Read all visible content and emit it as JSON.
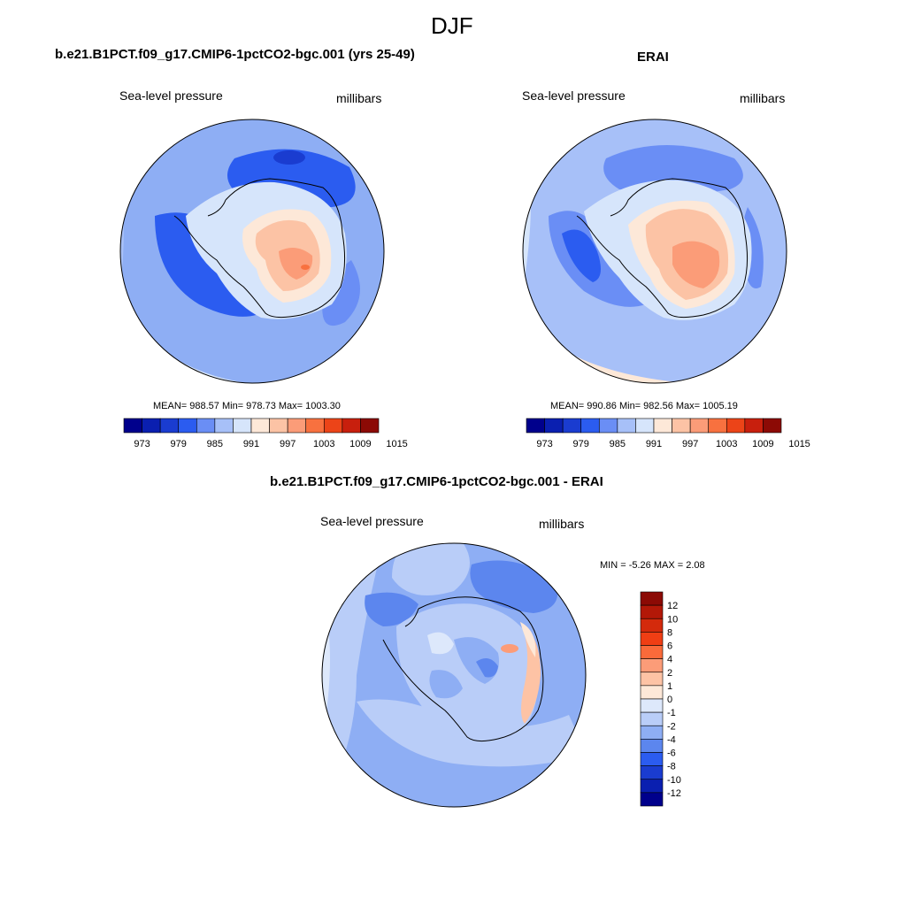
{
  "figure": {
    "title": "DJF"
  },
  "panels": [
    {
      "title": "b.e21.B1PCT.f09_g17.CMIP6-1pctCO2-bgc.001 (yrs 25-49)",
      "variable": "Sea-level pressure",
      "units": "millibars",
      "stats": "MEAN= 988.57  Min= 978.73  Max= 1003.30"
    },
    {
      "title": "ERAI",
      "variable": "Sea-level pressure",
      "units": "millibars",
      "stats": "MEAN= 990.86  Min= 982.56  Max= 1005.19"
    },
    {
      "title": "b.e21.B1PCT.f09_g17.CMIP6-1pctCO2-bgc.001 - ERAI",
      "variable": "Sea-level pressure",
      "units": "millibars",
      "stats": "MIN =  -5.26 MAX =   2.08"
    }
  ],
  "colorbar_abs": {
    "labels": [
      "973",
      "979",
      "985",
      "991",
      "997",
      "1003",
      "1009",
      "1015"
    ],
    "colors": [
      "#00008c",
      "#0a1fb0",
      "#1a3cd0",
      "#2b5cf0",
      "#6a8ef5",
      "#a7c0f8",
      "#d6e5fb",
      "#fde8d8",
      "#fcc3a5",
      "#fb9c78",
      "#f8713f",
      "#ec4418",
      "#c81f0d",
      "#8c0a05"
    ]
  },
  "colorbar_diff": {
    "labels": [
      "12",
      "10",
      "8",
      "6",
      "4",
      "2",
      "1",
      "0",
      "-1",
      "-2",
      "-4",
      "-6",
      "-8",
      "-10",
      "-12"
    ],
    "colors": [
      "#8c0a05",
      "#b31808",
      "#d42a0c",
      "#f03e14",
      "#fa6a3a",
      "#fc9c78",
      "#fdc3a5",
      "#fde8d8",
      "#dde8fb",
      "#b9cdf8",
      "#8eaef4",
      "#5c86ee",
      "#2b5cf0",
      "#1a3cd0",
      "#0a1fb0",
      "#00008c"
    ]
  }
}
